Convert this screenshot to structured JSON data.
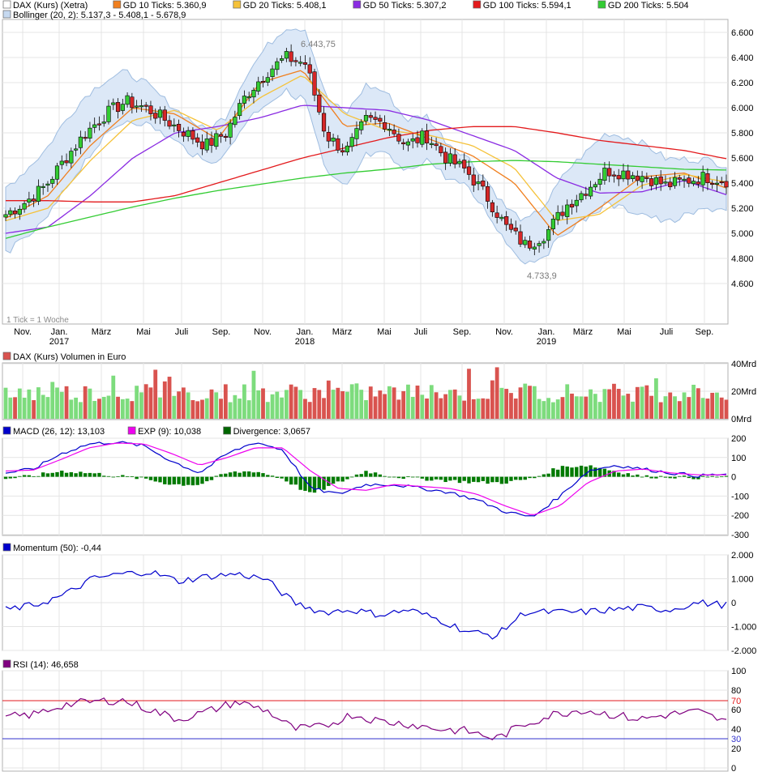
{
  "panels": {
    "price": {
      "legend": [
        {
          "key": "price",
          "label": "DAX (Kurs) (Xetra)",
          "color": "#ffffff"
        },
        {
          "key": "gd10",
          "label": "GD 10 Ticks: 5.360,9",
          "color": "#f07f1e"
        },
        {
          "key": "gd20",
          "label": "GD 20 Ticks: 5.408,1",
          "color": "#f5c23a"
        },
        {
          "key": "gd50",
          "label": "GD 50 Ticks: 5.307,2",
          "color": "#8a2be2"
        },
        {
          "key": "gd100",
          "label": "GD 100 Ticks: 5.594,1",
          "color": "#e31a1c"
        },
        {
          "key": "gd200",
          "label": "GD 200 Ticks: 5.504",
          "color": "#33cc33"
        },
        {
          "key": "boll",
          "label": "Bollinger (20, 2): 5.137,3 - 5.408,1 - 5.678,9",
          "color": "#c6d9f0"
        }
      ],
      "y_ticks": [
        "6.600",
        "6.400",
        "6.200",
        "6.000",
        "5.800",
        "5.600",
        "5.400",
        "5.200",
        "5.000",
        "4.800",
        "4.600"
      ],
      "high_label": "6.443,75",
      "low_label": "4.733,9",
      "tick_note": "1 Tick = 1 Woche",
      "x_labels": [
        "Nov.",
        "Jan.",
        "März",
        "Mai",
        "Juli",
        "Sep.",
        "Nov.",
        "Jan.",
        "März",
        "Mai",
        "Juli",
        "Sep.",
        "Nov.",
        "Jan.",
        "März",
        "Mai",
        "Juli",
        "Sep."
      ],
      "year_labels": [
        "2017",
        "2018",
        "2019"
      ]
    },
    "volume": {
      "legend": [
        {
          "label": "DAX (Kurs) Volumen in Euro",
          "color": "#d9534f"
        }
      ],
      "y_ticks": [
        "40Mrd",
        "20Mrd",
        "0Mrd"
      ]
    },
    "macd": {
      "legend": [
        {
          "label": "MACD (26, 12): 13,103",
          "color": "#0000cc"
        },
        {
          "label": "EXP (9): 10,038",
          "color": "#ee00ee"
        },
        {
          "label": "Divergence: 3,0657",
          "color": "#006600"
        }
      ],
      "y_ticks": [
        "200",
        "100",
        "0",
        "-100",
        "-200",
        "-300"
      ]
    },
    "momentum": {
      "legend": [
        {
          "label": "Momentum (50): -0,44",
          "color": "#0000cc"
        }
      ],
      "y_ticks": [
        "2.000",
        "1.000",
        "0",
        "-1.000",
        "-2.000"
      ]
    },
    "rsi": {
      "legend": [
        {
          "label": "RSI (14): 46,658",
          "color": "#800080"
        }
      ],
      "y_ticks": [
        "100",
        "80",
        "60",
        "40",
        "20",
        "0"
      ],
      "ref_upper": "70",
      "ref_lower": "30"
    }
  },
  "chart_data": [
    {
      "type": "line",
      "title": "DAX (Kurs) (Xetra)",
      "subtitle": "1 Tick = 1 Woche",
      "ylim": [
        4600,
        6600
      ],
      "x": [
        "Nov. 2016",
        "Jan. 2017",
        "März 2017",
        "Mai 2017",
        "Juli 2017",
        "Sep. 2017",
        "Nov. 2017",
        "Jan. 2018",
        "März 2018",
        "Mai 2018",
        "Juli 2018",
        "Sep. 2018",
        "Nov. 2018",
        "Jan. 2019",
        "März 2019",
        "Mai 2019",
        "Juli 2019",
        "Sep. 2019"
      ],
      "series": [
        {
          "name": "DAX (Kurs) (Xetra)",
          "values": [
            5150,
            5380,
            5800,
            6050,
            5900,
            5700,
            6280,
            6350,
            5780,
            5900,
            5700,
            5600,
            5300,
            4900,
            5220,
            5500,
            5450,
            5420
          ]
        },
        {
          "name": "GD 10 Ticks: 5.360,9",
          "values": [
            5120,
            5300,
            5700,
            6000,
            5950,
            5750,
            6200,
            6300,
            5850,
            5880,
            5750,
            5620,
            5400,
            4980,
            5200,
            5450,
            5480,
            5360
          ]
        },
        {
          "name": "GD 20 Ticks: 5.408,1",
          "values": [
            5100,
            5200,
            5580,
            5900,
            5980,
            5820,
            6080,
            6260,
            5950,
            5820,
            5780,
            5700,
            5520,
            5100,
            5150,
            5380,
            5470,
            5408
          ]
        },
        {
          "name": "GD 50 Ticks: 5.307,2",
          "values": [
            5000,
            5050,
            5300,
            5600,
            5800,
            5850,
            5920,
            6020,
            6000,
            5980,
            5900,
            5780,
            5660,
            5440,
            5320,
            5330,
            5420,
            5307
          ]
        },
        {
          "name": "GD 100 Ticks: 5.594,1",
          "values": [
            5260,
            5260,
            5250,
            5250,
            5300,
            5400,
            5500,
            5600,
            5680,
            5760,
            5820,
            5850,
            5850,
            5800,
            5740,
            5700,
            5660,
            5594
          ]
        },
        {
          "name": "GD 200 Ticks: 5.504",
          "values": [
            4960,
            5050,
            5130,
            5210,
            5280,
            5340,
            5390,
            5440,
            5480,
            5510,
            5550,
            5570,
            5580,
            5570,
            5550,
            5530,
            5510,
            5504
          ]
        }
      ],
      "annotations": {
        "high": "6.443,75",
        "low": "4.733,9"
      }
    },
    {
      "type": "bar",
      "title": "DAX (Kurs) Volumen in Euro",
      "ylim": [
        0,
        40
      ],
      "y_unit": "Mrd"
    },
    {
      "type": "line",
      "title": "MACD (26, 12): 13,103",
      "ylim": [
        -300,
        200
      ],
      "series_names": [
        "MACD (26, 12): 13,103",
        "EXP (9): 10,038",
        "Divergence: 3,0657"
      ]
    },
    {
      "type": "line",
      "title": "Momentum (50): -0,44",
      "ylim": [
        -2000,
        2000
      ]
    },
    {
      "type": "line",
      "title": "RSI (14): 46,658",
      "ylim": [
        0,
        100
      ],
      "reference_lines": [
        70,
        30
      ]
    }
  ]
}
